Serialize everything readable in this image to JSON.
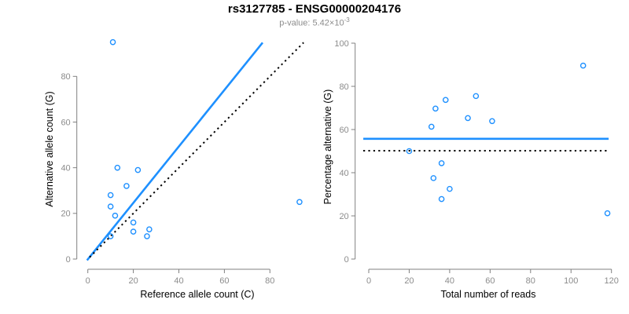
{
  "header": {
    "title": "rs3127785 - ENSG00000204176",
    "pvalue_text": "p-value: 5.42×10",
    "pvalue_exponent": "-3"
  },
  "colors": {
    "accent_blue": "#1E90FF",
    "point_blue": "#1E90FF",
    "reference_black": "#000000",
    "axis_gray": "#808080",
    "tick_label_gray": "#8c8c8c",
    "subtitle_gray": "#8c8c8c",
    "background": "#ffffff"
  },
  "chart_data": [
    {
      "type": "scatter",
      "name": "allele-count-scatter",
      "xlabel": "Reference allele count (C)",
      "ylabel": "Alternative allele count (G)",
      "x_ticks": [
        0,
        20,
        40,
        60,
        80
      ],
      "y_ticks": [
        0,
        20,
        40,
        60,
        80
      ],
      "xlim": [
        0,
        96
      ],
      "ylim": [
        0,
        98
      ],
      "grid": false,
      "legend": "none",
      "points": [
        [
          11,
          95
        ],
        [
          13,
          40
        ],
        [
          22,
          39
        ],
        [
          17,
          32
        ],
        [
          10,
          28
        ],
        [
          10,
          23
        ],
        [
          12,
          19
        ],
        [
          20,
          16
        ],
        [
          20,
          12
        ],
        [
          27,
          13
        ],
        [
          26,
          10
        ],
        [
          10,
          10
        ],
        [
          93,
          25
        ]
      ],
      "lines": [
        {
          "name": "fit-line",
          "style": "solid",
          "color": "#1E90FF",
          "slope": 1.23,
          "from": [
            -0.35,
            -0.55
          ],
          "to": [
            76.8,
            94.8
          ]
        },
        {
          "name": "identity-line",
          "style": "dotted",
          "color": "#000000",
          "slope": 1.0,
          "from": [
            0.8,
            0.8
          ],
          "to": [
            94.8,
            94.8
          ]
        }
      ]
    },
    {
      "type": "scatter",
      "name": "percentage-scatter",
      "xlabel": "Total number of reads",
      "ylabel": "Percentage alternative (G)",
      "x_ticks": [
        0,
        20,
        40,
        60,
        80,
        100,
        120
      ],
      "y_ticks": [
        0,
        20,
        40,
        60,
        80,
        100
      ],
      "xlim": [
        0,
        120
      ],
      "ylim": [
        0,
        100
      ],
      "grid": false,
      "legend": "none",
      "points": [
        [
          20,
          50
        ],
        [
          31,
          61.3
        ],
        [
          33,
          69.7
        ],
        [
          38,
          73.7
        ],
        [
          49,
          65.3
        ],
        [
          53,
          75.5
        ],
        [
          61,
          63.9
        ],
        [
          36,
          44.4
        ],
        [
          32,
          37.5
        ],
        [
          40,
          32.5
        ],
        [
          36,
          27.8
        ],
        [
          106,
          89.6
        ],
        [
          118,
          21.2
        ]
      ],
      "lines": [
        {
          "name": "mean-percentage-line",
          "style": "solid",
          "color": "#1E90FF",
          "value": 55.7,
          "from": [
            -2.7,
            55.7
          ],
          "to": [
            118.6,
            55.7
          ]
        },
        {
          "name": "fifty-percent-line",
          "style": "dotted",
          "color": "#000000",
          "value": 50.2,
          "from": [
            -2.7,
            50.2
          ],
          "to": [
            117.8,
            50.2
          ]
        }
      ]
    }
  ]
}
